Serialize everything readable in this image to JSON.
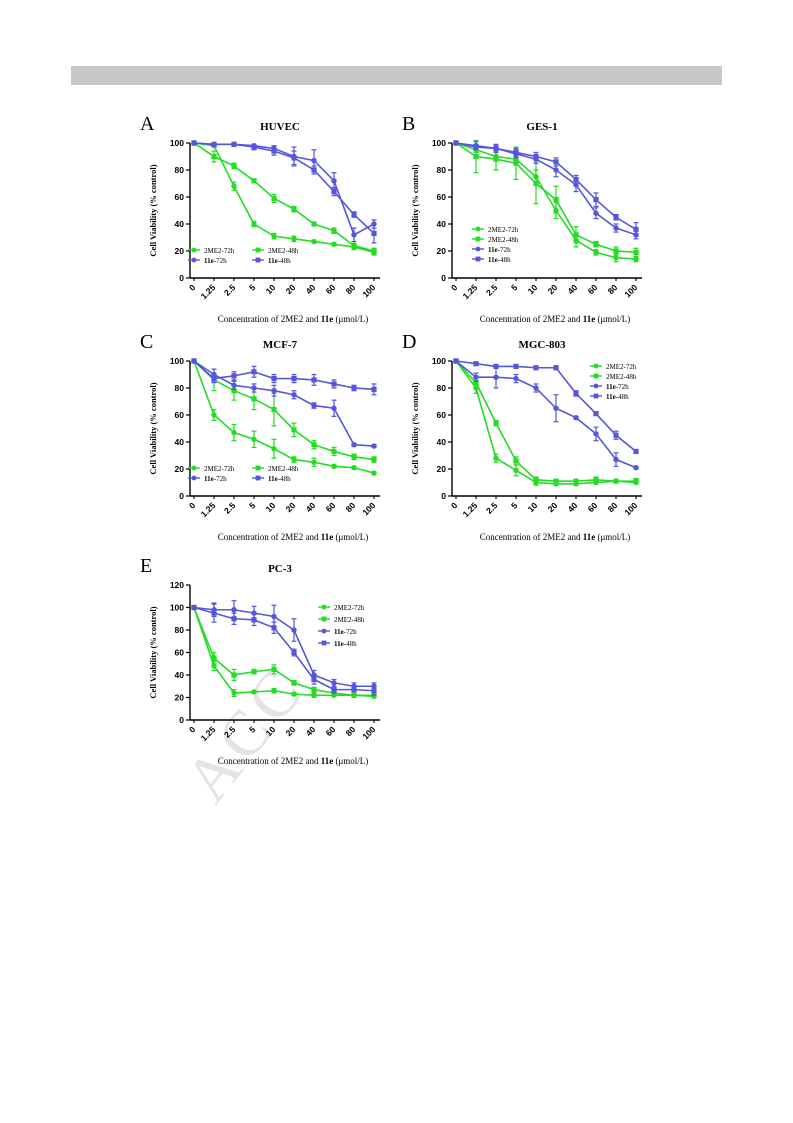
{
  "page": {
    "watermark": "ACC"
  },
  "colors": {
    "green": "#22dd22",
    "blue": "#5555dd",
    "axis": "#000000"
  },
  "chart_data": [
    {
      "id": "A",
      "letter": "A",
      "title": "HUVEC",
      "type": "line",
      "categories": [
        "0",
        "1.25",
        "2.5",
        "5",
        "10",
        "20",
        "40",
        "60",
        "80",
        "100"
      ],
      "ylabel": "Cell Viability (% control)",
      "xlabel_prefix": "Concentration of 2ME2 and ",
      "xlabel_bold": "11e",
      "xlabel_suffix": " (μmol/L)",
      "ylim": [
        0,
        100
      ],
      "yticks": [
        0,
        20,
        40,
        60,
        80,
        100
      ],
      "legend": "bottom-center-2col",
      "series": [
        {
          "name": "2ME2-72h",
          "name_bold": "",
          "name_rest": "2ME2-72h",
          "color": "green",
          "marker": "circle",
          "values": [
            100,
            98,
            68,
            40,
            31,
            29,
            27,
            25,
            23,
            19
          ],
          "err": [
            0,
            1,
            3,
            2,
            2,
            2,
            1,
            1,
            1,
            2
          ]
        },
        {
          "name": "2ME2-48h",
          "name_bold": "",
          "name_rest": "2ME2-48h",
          "color": "green",
          "marker": "square",
          "values": [
            100,
            90,
            83,
            72,
            59,
            51,
            40,
            35,
            24,
            20
          ],
          "err": [
            0,
            4,
            2,
            1,
            3,
            2,
            1,
            2,
            3,
            2
          ]
        },
        {
          "name": "11e-72h",
          "name_bold": "11e",
          "name_rest": "-72h",
          "color": "blue",
          "marker": "circle",
          "values": [
            100,
            99,
            99,
            98,
            96,
            90,
            87,
            72,
            32,
            40
          ],
          "err": [
            0,
            1,
            1,
            1,
            2,
            7,
            8,
            6,
            5,
            3
          ]
        },
        {
          "name": "11e-48h",
          "name_bold": "11e",
          "name_rest": "-48h",
          "color": "blue",
          "marker": "square",
          "values": [
            100,
            99,
            99,
            97,
            94,
            89,
            80,
            64,
            47,
            33
          ],
          "err": [
            0,
            1,
            1,
            2,
            3,
            5,
            3,
            3,
            2,
            7
          ]
        }
      ]
    },
    {
      "id": "B",
      "letter": "B",
      "title": "GES-1",
      "type": "line",
      "categories": [
        "0",
        "1.25",
        "2.5",
        "5",
        "10",
        "20",
        "40",
        "60",
        "80",
        "100"
      ],
      "ylabel": "Cell Viability (% control)",
      "xlabel_prefix": "Concentration of 2ME2 and ",
      "xlabel_bold": "11e",
      "xlabel_suffix": " (μmol/L)",
      "ylim": [
        0,
        100
      ],
      "yticks": [
        0,
        20,
        40,
        60,
        80,
        100
      ],
      "legend": "bottom-left-1col",
      "series": [
        {
          "name": "2ME2-72h",
          "name_bold": "",
          "name_rest": "2ME2-72h",
          "color": "green",
          "marker": "circle",
          "values": [
            100,
            95,
            90,
            88,
            75,
            50,
            28,
            19,
            15,
            14
          ],
          "err": [
            0,
            2,
            3,
            3,
            5,
            6,
            5,
            2,
            3,
            2
          ]
        },
        {
          "name": "2ME2-48h",
          "name_bold": "",
          "name_rest": "2ME2-48h",
          "color": "green",
          "marker": "square",
          "values": [
            100,
            90,
            88,
            85,
            70,
            58,
            32,
            25,
            20,
            19
          ],
          "err": [
            0,
            12,
            8,
            12,
            15,
            10,
            6,
            2,
            3,
            3
          ]
        },
        {
          "name": "11e-72h",
          "name_bold": "11e",
          "name_rest": "-72h",
          "color": "blue",
          "marker": "circle",
          "values": [
            100,
            98,
            96,
            92,
            88,
            80,
            69,
            48,
            37,
            32
          ],
          "err": [
            0,
            3,
            3,
            3,
            3,
            5,
            5,
            4,
            3,
            3
          ]
        },
        {
          "name": "11e-48h",
          "name_bold": "11e",
          "name_rest": "-48h",
          "color": "blue",
          "marker": "square",
          "values": [
            100,
            97,
            96,
            93,
            90,
            86,
            73,
            58,
            45,
            36
          ],
          "err": [
            0,
            2,
            2,
            3,
            3,
            3,
            3,
            5,
            2,
            5
          ]
        }
      ]
    },
    {
      "id": "C",
      "letter": "C",
      "title": "MCF-7",
      "type": "line",
      "categories": [
        "0",
        "1.25",
        "2.5",
        "5",
        "10",
        "20",
        "40",
        "60",
        "80",
        "100"
      ],
      "ylabel": "Cell Viability (% control)",
      "xlabel_prefix": "Concentration of 2ME2 and ",
      "xlabel_bold": "11e",
      "xlabel_suffix": " (μmol/L)",
      "ylim": [
        0,
        100
      ],
      "yticks": [
        0,
        20,
        40,
        60,
        80,
        100
      ],
      "legend": "bottom-center-2col",
      "series": [
        {
          "name": "2ME2-72h",
          "name_bold": "",
          "name_rest": "2ME2-72h",
          "color": "green",
          "marker": "circle",
          "values": [
            100,
            60,
            47,
            42,
            35,
            27,
            25,
            22,
            21,
            17
          ],
          "err": [
            0,
            4,
            6,
            6,
            7,
            2,
            3,
            1,
            1,
            1
          ]
        },
        {
          "name": "2ME2-48h",
          "name_bold": "",
          "name_rest": "2ME2-48h",
          "color": "green",
          "marker": "square",
          "values": [
            100,
            86,
            78,
            72,
            64,
            49,
            38,
            33,
            29,
            27
          ],
          "err": [
            0,
            8,
            7,
            8,
            12,
            5,
            3,
            3,
            2,
            2
          ]
        },
        {
          "name": "11e-72h",
          "name_bold": "11e",
          "name_rest": "-72h",
          "color": "blue",
          "marker": "circle",
          "values": [
            100,
            90,
            82,
            80,
            78,
            75,
            67,
            65,
            38,
            37
          ],
          "err": [
            0,
            4,
            3,
            3,
            4,
            3,
            2,
            6,
            1,
            1
          ]
        },
        {
          "name": "11e-48h",
          "name_bold": "11e",
          "name_rest": "-48h",
          "color": "blue",
          "marker": "square",
          "values": [
            100,
            87,
            89,
            92,
            87,
            87,
            86,
            83,
            80,
            79
          ],
          "err": [
            0,
            3,
            3,
            4,
            3,
            3,
            4,
            3,
            2,
            4
          ]
        }
      ]
    },
    {
      "id": "D",
      "letter": "D",
      "title": "MGC-803",
      "type": "line",
      "categories": [
        "0",
        "1.25",
        "2.5",
        "5",
        "10",
        "20",
        "40",
        "60",
        "80",
        "100"
      ],
      "ylabel": "Cell Viability (% control)",
      "xlabel_prefix": "Concentration of 2ME2 and ",
      "xlabel_bold": "11e",
      "xlabel_suffix": " (μmol/L)",
      "ylim": [
        0,
        100
      ],
      "yticks": [
        0,
        20,
        40,
        60,
        80,
        100
      ],
      "legend": "top-right-1col",
      "series": [
        {
          "name": "2ME2-72h",
          "name_bold": "",
          "name_rest": "2ME2-72h",
          "color": "green",
          "marker": "circle",
          "values": [
            100,
            80,
            28,
            19,
            10,
            9,
            9,
            10,
            11,
            10
          ],
          "err": [
            0,
            4,
            3,
            4,
            2,
            1,
            1,
            1,
            1,
            1
          ]
        },
        {
          "name": "2ME2-48h",
          "name_bold": "",
          "name_rest": "2ME2-48h",
          "color": "green",
          "marker": "square",
          "values": [
            100,
            84,
            54,
            26,
            12,
            11,
            11,
            12,
            11,
            11
          ],
          "err": [
            0,
            4,
            2,
            3,
            2,
            1,
            1,
            2,
            1,
            2
          ]
        },
        {
          "name": "11e-72h",
          "name_bold": "11e",
          "name_rest": "-72h",
          "color": "blue",
          "marker": "circle",
          "values": [
            100,
            88,
            88,
            87,
            80,
            65,
            58,
            46,
            27,
            21
          ],
          "err": [
            0,
            3,
            8,
            3,
            3,
            10,
            1,
            5,
            5,
            1
          ]
        },
        {
          "name": "11e-48h",
          "name_bold": "11e",
          "name_rest": "-48h",
          "color": "blue",
          "marker": "square",
          "values": [
            100,
            98,
            96,
            96,
            95,
            95,
            76,
            61,
            45,
            33
          ],
          "err": [
            0,
            1,
            1,
            1,
            1,
            1,
            2,
            1,
            3,
            1
          ]
        }
      ]
    },
    {
      "id": "E",
      "letter": "E",
      "title": "PC-3",
      "type": "line",
      "categories": [
        "0",
        "1.25",
        "2.5",
        "5",
        "10",
        "20",
        "40",
        "60",
        "80",
        "100"
      ],
      "ylabel": "Cell Viability (% control)",
      "xlabel_prefix": "Concentration of 2ME2 and ",
      "xlabel_bold": "11e",
      "xlabel_suffix": " (μmol/L)",
      "ylim": [
        0,
        120
      ],
      "yticks": [
        0,
        20,
        40,
        60,
        80,
        100,
        120
      ],
      "legend": "right-1col",
      "series": [
        {
          "name": "2ME2-72h",
          "name_bold": "",
          "name_rest": "2ME2-72h",
          "color": "green",
          "marker": "circle",
          "values": [
            100,
            48,
            24,
            25,
            26,
            23,
            22,
            22,
            22,
            21
          ],
          "err": [
            0,
            4,
            3,
            1,
            2,
            1,
            2,
            1,
            1,
            1
          ]
        },
        {
          "name": "2ME2-48h",
          "name_bold": "",
          "name_rest": "2ME2-48h",
          "color": "green",
          "marker": "square",
          "values": [
            100,
            55,
            40,
            43,
            45,
            33,
            27,
            24,
            22,
            22
          ],
          "err": [
            0,
            5,
            5,
            2,
            4,
            2,
            2,
            3,
            1,
            2
          ]
        },
        {
          "name": "11e-72h",
          "name_bold": "11e",
          "name_rest": "-72h",
          "color": "blue",
          "marker": "circle",
          "values": [
            100,
            98,
            98,
            95,
            92,
            80,
            40,
            33,
            30,
            30
          ],
          "err": [
            0,
            6,
            8,
            6,
            10,
            10,
            4,
            3,
            3,
            3
          ]
        },
        {
          "name": "11e-48h",
          "name_bold": "11e",
          "name_rest": "-48h",
          "color": "blue",
          "marker": "square",
          "values": [
            100,
            95,
            90,
            89,
            82,
            60,
            36,
            27,
            27,
            26
          ],
          "err": [
            0,
            8,
            5,
            5,
            5,
            3,
            4,
            3,
            2,
            4
          ]
        }
      ]
    }
  ]
}
